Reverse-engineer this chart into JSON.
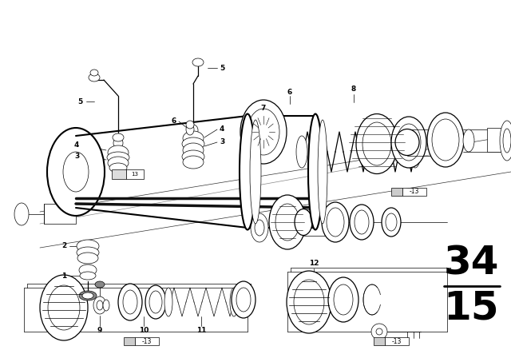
{
  "bg_color": "#ffffff",
  "line_color": "#000000",
  "fig_width": 6.4,
  "fig_height": 4.48,
  "dpi": 100,
  "section_top": "34",
  "section_bottom": "15",
  "lw_thin": 0.5,
  "lw_med": 0.9,
  "lw_thick": 1.5
}
